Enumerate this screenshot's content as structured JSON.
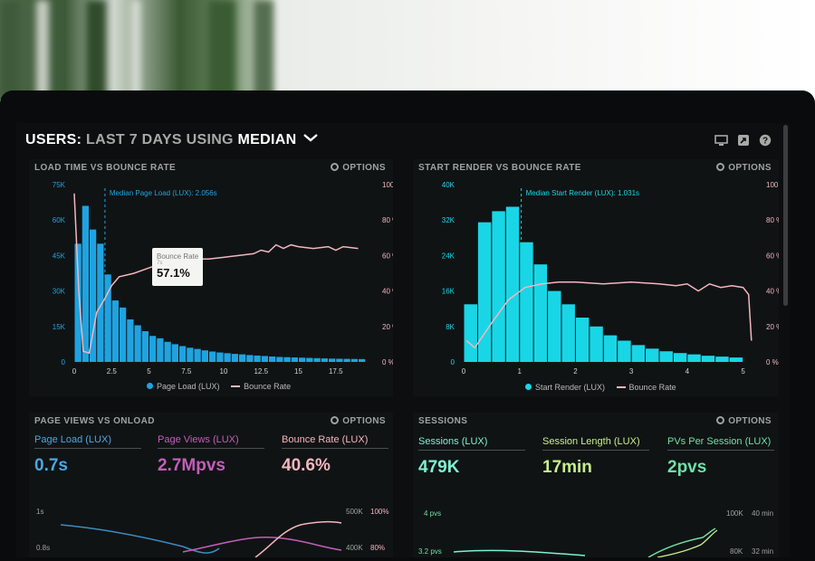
{
  "header": {
    "title_users": "USERS:",
    "title_last": "LAST 7 DAYS",
    "title_using": "USING",
    "title_median": "MEDIAN",
    "icons": [
      "monitor-icon",
      "share-icon",
      "help-icon"
    ]
  },
  "options_label": "OPTIONS",
  "panels": {
    "load": {
      "title": "LOAD TIME VS BOUNCE RATE",
      "median_label": "Median Page Load (LUX): 2.056s",
      "legend_bar": "Page Load (LUX)",
      "legend_line": "Bounce Rate",
      "tooltip_title": "Bounce Rate",
      "tooltip_sub": "7s",
      "tooltip_value": "57.1%"
    },
    "render": {
      "title": "START RENDER VS BOUNCE RATE",
      "median_label": "Median Start Render (LUX): 1.031s",
      "legend_bar": "Start Render (LUX)",
      "legend_line": "Bounce Rate"
    },
    "pageviews": {
      "title": "PAGE VIEWS VS ONLOAD",
      "metrics": [
        {
          "label": "Page Load (LUX)",
          "value": "0.7s",
          "color": "#4aa8e0"
        },
        {
          "label": "Page Views (LUX)",
          "value": "2.7Mpvs",
          "color": "#c15fb8"
        },
        {
          "label": "Bounce Rate (LUX)",
          "value": "40.6%",
          "color": "#f3b6bf"
        }
      ],
      "left_ticks": [
        "1s",
        "0.8s"
      ],
      "right_ticks_a": [
        "500K",
        "400K"
      ],
      "right_ticks_b": [
        "100%",
        "80%"
      ]
    },
    "sessions": {
      "title": "SESSIONS",
      "metrics": [
        {
          "label": "Sessions (LUX)",
          "value": "479K",
          "color": "#7ef2cf"
        },
        {
          "label": "Session Length (LUX)",
          "value": "17min",
          "color": "#c7ef8a"
        },
        {
          "label": "PVs Per Session (LUX)",
          "value": "2pvs",
          "color": "#6fe0a8"
        }
      ],
      "left_ticks": [
        "4 pvs",
        "3.2 pvs"
      ],
      "right_ticks_a": [
        "100K",
        "80K"
      ],
      "right_ticks_b": [
        "40 min",
        "32 min"
      ]
    }
  },
  "colors": {
    "blue": "#1fa3e0",
    "cyan": "#19d6e6",
    "pink": "#f3b6c0",
    "muted": "#9ea3a0"
  },
  "chart_data": [
    {
      "type": "bar",
      "title": "LOAD TIME VS BOUNCE RATE",
      "x_ticks": [
        "0",
        "2.5",
        "5",
        "7.5",
        "10",
        "12.5",
        "15",
        "17.5"
      ],
      "xlim": [
        0,
        20
      ],
      "y_left_ticks": [
        "0",
        "15K",
        "30K",
        "45K",
        "60K",
        "75K"
      ],
      "ylim_left": [
        0,
        75000
      ],
      "y_right_ticks": [
        "0 %",
        "20 %",
        "40 %",
        "60 %",
        "80 %",
        "100 %"
      ],
      "ylim_right": [
        0,
        100
      ],
      "median_x": 2.056,
      "series": [
        {
          "name": "Page Load (LUX)",
          "x": [
            0.25,
            0.75,
            1.25,
            1.75,
            2.25,
            2.75,
            3.25,
            3.75,
            4.25,
            4.75,
            5.25,
            5.75,
            6.25,
            6.75,
            7.25,
            7.75,
            8.25,
            8.75,
            9.25,
            9.75,
            10.25,
            10.75,
            11.25,
            11.75,
            12.25,
            12.75,
            13.25,
            13.75,
            14.25,
            14.75,
            15.25,
            15.75,
            16.25,
            16.75,
            17.25,
            17.75,
            18.25,
            18.75,
            19.25
          ],
          "values": [
            50000,
            66000,
            56000,
            50000,
            37000,
            26000,
            23000,
            18000,
            15500,
            13000,
            11000,
            10000,
            8500,
            7500,
            6700,
            6000,
            5500,
            4900,
            4400,
            4000,
            3700,
            3400,
            3200,
            2900,
            2700,
            2500,
            2300,
            2100,
            2000,
            1900,
            1800,
            1700,
            1600,
            1500,
            1400,
            1350,
            1300,
            1250,
            1200
          ]
        },
        {
          "name": "Bounce Rate",
          "x": [
            0,
            0.3,
            0.6,
            1,
            1.5,
            2,
            2.5,
            3,
            4,
            5,
            6,
            7,
            8,
            9,
            10,
            11,
            12,
            12.5,
            13,
            13.5,
            14,
            14.5,
            15,
            16,
            17,
            17.5,
            18,
            19
          ],
          "values": [
            95,
            40,
            6,
            5,
            28,
            35,
            43,
            48,
            50,
            53,
            56,
            57.1,
            58,
            58,
            59,
            60,
            61,
            63,
            62,
            66,
            64,
            66,
            65,
            64,
            65,
            63,
            65,
            64
          ]
        }
      ]
    },
    {
      "type": "bar",
      "title": "START RENDER VS BOUNCE RATE",
      "x_ticks": [
        "0",
        "1",
        "2",
        "3",
        "4",
        "5"
      ],
      "xlim": [
        0,
        5.25
      ],
      "y_left_ticks": [
        "0",
        "8K",
        "16K",
        "24K",
        "32K",
        "40K"
      ],
      "ylim_left": [
        0,
        40000
      ],
      "y_right_ticks": [
        "0 %",
        "20 %",
        "40 %",
        "60 %",
        "80 %",
        "100 %"
      ],
      "ylim_right": [
        0,
        100
      ],
      "median_x": 1.031,
      "series": [
        {
          "name": "Start Render (LUX)",
          "x": [
            0.125,
            0.375,
            0.625,
            0.875,
            1.125,
            1.375,
            1.625,
            1.875,
            2.125,
            2.375,
            2.625,
            2.875,
            3.125,
            3.375,
            3.625,
            3.875,
            4.125,
            4.375,
            4.625,
            4.875
          ],
          "values": [
            13000,
            31500,
            34000,
            35000,
            27000,
            22000,
            16000,
            13000,
            10000,
            8000,
            6000,
            4800,
            3800,
            3000,
            2400,
            2000,
            1700,
            1400,
            1200,
            1000
          ]
        },
        {
          "name": "Bounce Rate",
          "x": [
            0.05,
            0.2,
            0.5,
            0.8,
            1.1,
            1.4,
            1.7,
            2,
            2.5,
            3,
            3.5,
            3.8,
            4,
            4.2,
            4.4,
            4.6,
            4.8,
            5.0,
            5.1,
            5.15
          ],
          "values": [
            12,
            8,
            22,
            35,
            42,
            44,
            45,
            45,
            44,
            45,
            44,
            43,
            44,
            40,
            44,
            42,
            43,
            42,
            38,
            12
          ]
        }
      ]
    }
  ]
}
